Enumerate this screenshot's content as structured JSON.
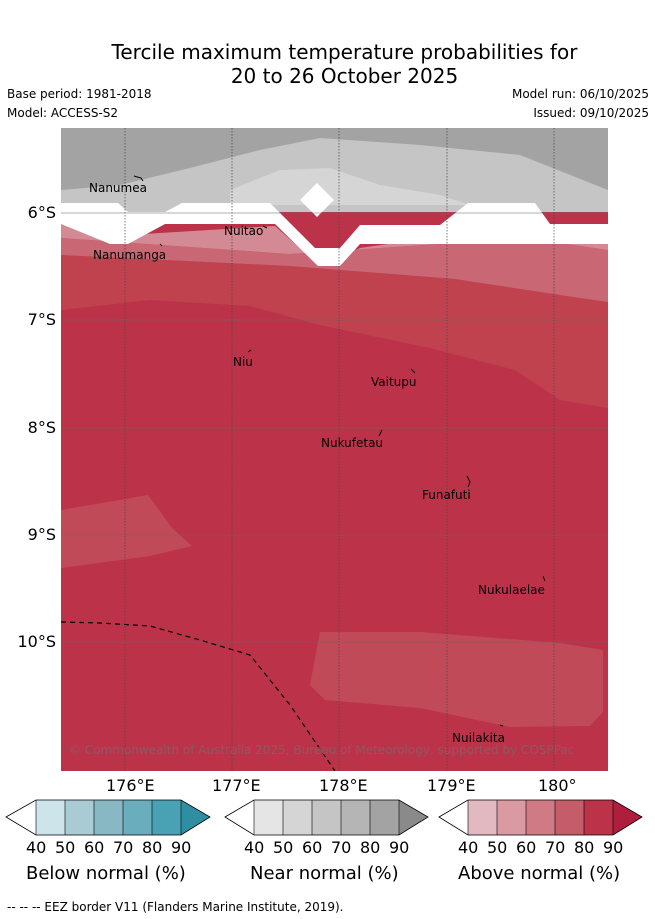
{
  "title": {
    "line1": "Tercile maximum temperature probabilities for",
    "line2": "20 to 26 October 2025"
  },
  "meta": {
    "base_period": "Base period: 1981-2018",
    "model": "Model: ACCESS-S2",
    "model_run": "Model run: 06/10/2025",
    "issued": "Issued: 09/10/2025"
  },
  "lat_labels": [
    "6°S",
    "7°S",
    "8°S",
    "9°S",
    "10°S"
  ],
  "lon_labels": [
    "176°E",
    "177°E",
    "178°E",
    "179°E",
    "180°"
  ],
  "places": [
    {
      "name": "Nanumea"
    },
    {
      "name": "Nuitao"
    },
    {
      "name": "Nanumanga"
    },
    {
      "name": "Niu"
    },
    {
      "name": "Vaitupu"
    },
    {
      "name": "Nukufetau"
    },
    {
      "name": "Funafuti"
    },
    {
      "name": "Nukulaelae"
    },
    {
      "name": "Nuilakita"
    }
  ],
  "copyright": "© Commonwealth of Australia 2025, Bureau of Meteorology, supported by COSPPac",
  "colorbars": [
    {
      "label": "Below normal (%)",
      "ticks": [
        "40",
        "50",
        "60",
        "70",
        "80",
        "90"
      ],
      "colors": [
        "#ffffff",
        "#cce4ea",
        "#a9cbd3",
        "#89b8c5",
        "#6aaebd",
        "#48a2b3",
        "#2e8ea2"
      ]
    },
    {
      "label": "Near normal (%)",
      "ticks": [
        "40",
        "50",
        "60",
        "70",
        "80",
        "90"
      ],
      "colors": [
        "#ffffff",
        "#e5e5e5",
        "#d5d5d5",
        "#c5c5c5",
        "#b5b5b5",
        "#a3a3a3",
        "#8a8a8a"
      ]
    },
    {
      "label": "Above normal (%)",
      "ticks": [
        "40",
        "50",
        "60",
        "70",
        "80",
        "90"
      ],
      "colors": [
        "#ffffff",
        "#e2b9c0",
        "#d99aa3",
        "#cf7a85",
        "#c45c6a",
        "#bc3349",
        "#b01e3e"
      ]
    }
  ],
  "footer": "--  --  -- EEZ border V11 (Flanders Marine Institute, 2019)."
}
